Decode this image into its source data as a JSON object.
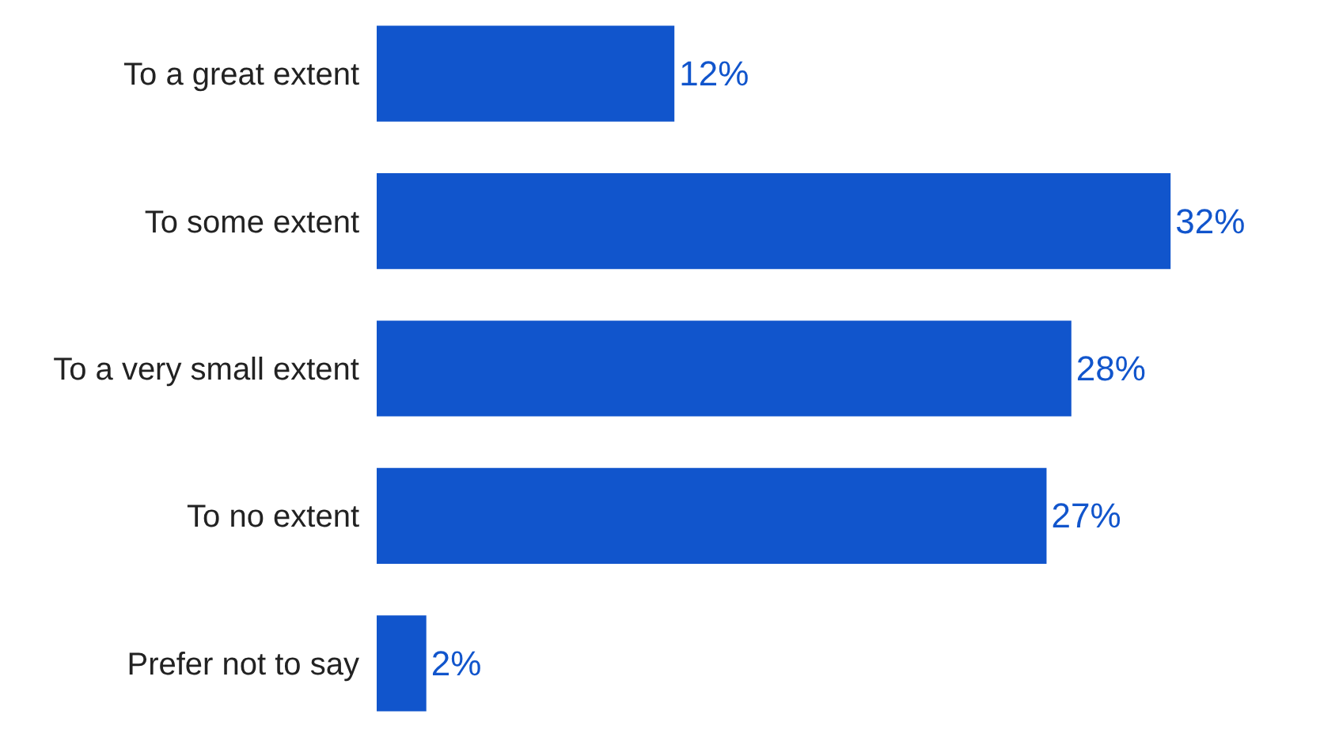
{
  "chart_data": {
    "type": "bar",
    "orientation": "horizontal",
    "categories": [
      "To a great extent",
      "To some extent",
      "To a very small extent",
      "To no extent",
      "Prefer not to say"
    ],
    "values": [
      12,
      32,
      28,
      27,
      2
    ],
    "value_labels": [
      "12%",
      "32%",
      "28%",
      "27%",
      "2%"
    ],
    "color": "#1155cc",
    "tick_labels": "y"
  }
}
